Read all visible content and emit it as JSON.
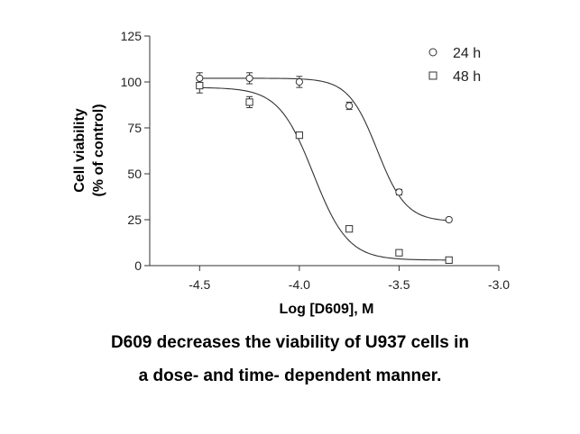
{
  "chart_data": {
    "type": "scatter",
    "title": "",
    "xlabel": "Log [D609], M",
    "ylabel": "Cell viability",
    "ylabel_sub": "(% of control)",
    "xlim": [
      -4.75,
      -3.0
    ],
    "ylim": [
      0,
      125
    ],
    "x_ticks": [
      -4.5,
      -4.0,
      -3.5,
      -3.0
    ],
    "x_tick_labels": [
      "-4.5",
      "-4.0",
      "-3.5",
      "-3.0"
    ],
    "y_ticks": [
      0,
      25,
      50,
      75,
      100,
      125
    ],
    "y_tick_labels": [
      "0",
      "25",
      "50",
      "75",
      "100",
      "125"
    ],
    "grid": false,
    "legend_position": "top-right",
    "series": [
      {
        "name": "24 h",
        "marker": "circle",
        "x": [
          -4.5,
          -4.25,
          -4.0,
          -3.75,
          -3.5,
          -3.25
        ],
        "y": [
          102,
          102,
          100,
          87,
          40,
          25
        ],
        "err": [
          3,
          3,
          3,
          2,
          1.5,
          1
        ],
        "fit": {
          "top": 102,
          "bottom": 24,
          "logEC50": -3.61,
          "hill": 6
        }
      },
      {
        "name": "48 h",
        "marker": "square",
        "x": [
          -4.5,
          -4.25,
          -4.0,
          -3.75,
          -3.5,
          -3.25
        ],
        "y": [
          98,
          89,
          71,
          20,
          7,
          3
        ],
        "err": [
          4,
          3,
          1.5,
          1,
          1,
          0.5
        ],
        "fit": {
          "top": 97,
          "bottom": 3,
          "logEC50": -3.93,
          "hill": 5
        }
      }
    ]
  },
  "caption": {
    "line1": "D609 decreases the viability of U937 cells in",
    "line2": "a dose- and time- dependent manner."
  }
}
